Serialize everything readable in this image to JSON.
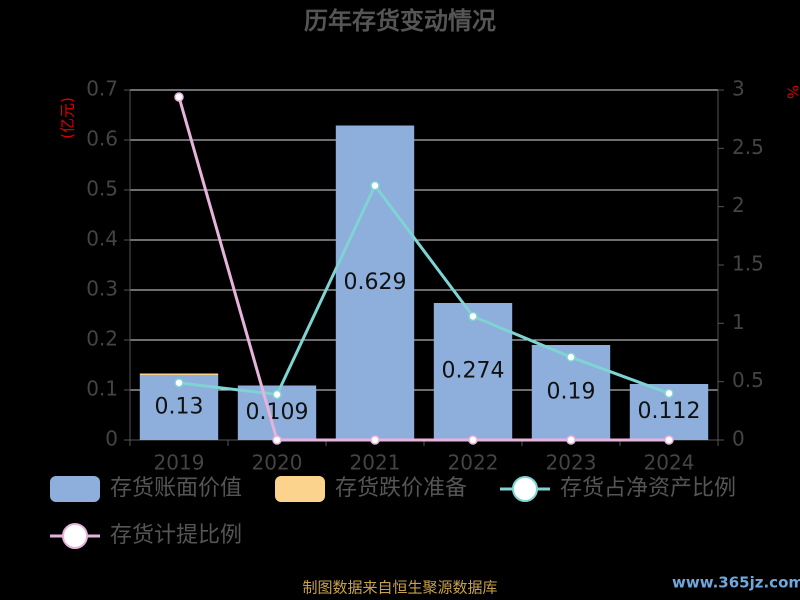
{
  "chart_data": {
    "type": "bar",
    "title": "历年存货变动情况",
    "y_label": "(亿元)",
    "y2_label": "%",
    "categories": [
      "2019",
      "2020",
      "2021",
      "2022",
      "2023",
      "2024"
    ],
    "series": [
      {
        "name": "存货账面价值",
        "type": "bar",
        "color": "#8eaedb",
        "values": [
          0.13,
          0.109,
          0.629,
          0.274,
          0.19,
          0.112
        ]
      },
      {
        "name": "存货跌价准备",
        "type": "bar",
        "color": "#fcd38d",
        "values": [
          0.003,
          0,
          0,
          0,
          0,
          0
        ]
      },
      {
        "name": "存货占净资产比例",
        "type": "line",
        "axis": "y2",
        "color": "#7fd3d3",
        "values": [
          0.49,
          0.39,
          2.18,
          1.06,
          0.71,
          0.4
        ]
      },
      {
        "name": "存货计提比例",
        "type": "line",
        "axis": "y2",
        "color": "#e6b3db",
        "values": [
          2.94,
          0,
          0,
          0,
          0,
          0
        ]
      }
    ],
    "ylim": [
      0,
      0.7
    ],
    "yticks": [
      0,
      0.1,
      0.2,
      0.3,
      0.4,
      0.5,
      0.6,
      0.7
    ],
    "y2lim": [
      0,
      3
    ],
    "y2ticks": [
      0,
      0.5,
      1,
      1.5,
      2,
      2.5,
      3
    ],
    "grid": true,
    "source": "制图数据来自恒生聚源数据库",
    "watermark": "www.365jz.com"
  }
}
